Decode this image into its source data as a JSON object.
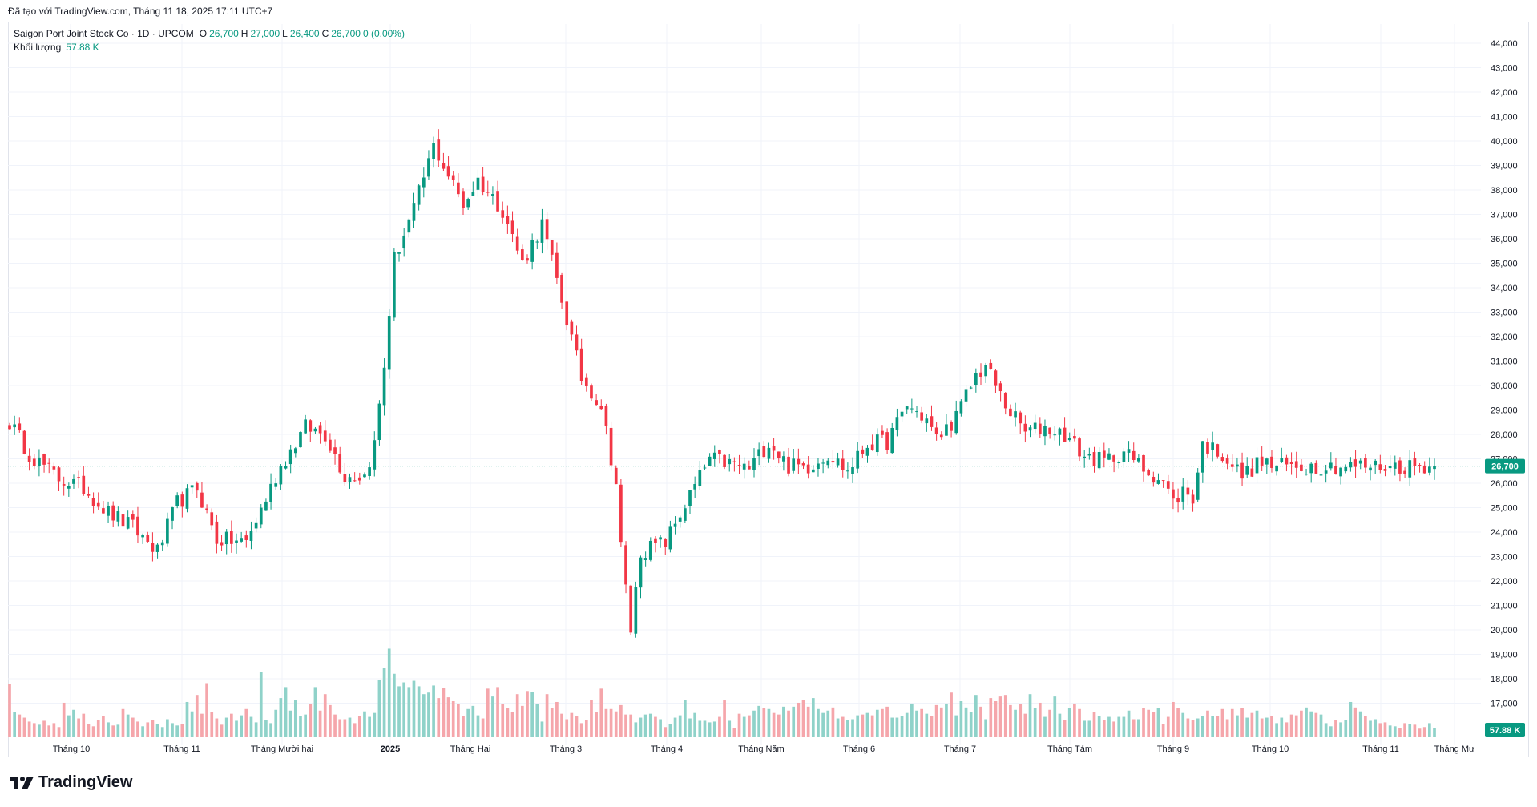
{
  "caption": "Đã tạo với TradingView.com, Tháng 11 18, 2025 17:11 UTC+7",
  "legend": {
    "title": "Saigon Port Joint Stock Co · 1D · UPCOM",
    "open_label": "O",
    "open_value": "26,700",
    "high_label": "H",
    "high_value": "27,000",
    "low_label": "L",
    "low_value": "26,400",
    "close_label": "C",
    "close_value": "26,700",
    "change": "0 (0.00%)",
    "volume_label": "Khối lượng",
    "volume_value": "57.88 K"
  },
  "last_price_label": "26,700",
  "last_volume_label": "57.88 K",
  "brand": "TradingView",
  "colors": {
    "up": "#089981",
    "down": "#f23645",
    "up_vol": "#8fd2c9",
    "down_vol": "#f5a6ab",
    "accent": "#2962ff"
  },
  "chart_data": {
    "type": "candlestick",
    "price_axis": {
      "min": 16000,
      "max": 44500,
      "ticks": [
        "17,000",
        "18,000",
        "19,000",
        "20,000",
        "21,000",
        "22,000",
        "23,000",
        "24,000",
        "25,000",
        "26,000",
        "27,000",
        "28,000",
        "29,000",
        "30,000",
        "31,000",
        "32,000",
        "33,000",
        "34,000",
        "35,000",
        "36,000",
        "37,000",
        "38,000",
        "39,000",
        "40,000",
        "41,000",
        "42,000",
        "43,000",
        "44,000"
      ]
    },
    "time_axis": [
      "Tháng 10",
      "Tháng 11",
      "Tháng Mười hai",
      "2025",
      "Tháng Hai",
      "Tháng 3",
      "Tháng 4",
      "Tháng Năm",
      "Tháng 6",
      "Tháng 7",
      "Tháng Tám",
      "Tháng 9",
      "Tháng 10",
      "Tháng 11",
      "Tháng Mư"
    ],
    "time_axis_bold": "2025",
    "anchors": [
      [
        0,
        28500
      ],
      [
        4,
        27200
      ],
      [
        10,
        26200
      ],
      [
        15,
        25800
      ],
      [
        20,
        24800
      ],
      [
        25,
        24200
      ],
      [
        30,
        23200
      ],
      [
        34,
        25200
      ],
      [
        38,
        25800
      ],
      [
        42,
        23700
      ],
      [
        48,
        23600
      ],
      [
        55,
        26700
      ],
      [
        60,
        28300
      ],
      [
        64,
        28000
      ],
      [
        68,
        26300
      ],
      [
        72,
        26300
      ],
      [
        74,
        27600
      ],
      [
        76,
        30800
      ],
      [
        78,
        35200
      ],
      [
        82,
        37200
      ],
      [
        86,
        39800
      ],
      [
        92,
        37400
      ],
      [
        95,
        38400
      ],
      [
        100,
        37200
      ],
      [
        104,
        35000
      ],
      [
        108,
        36600
      ],
      [
        112,
        33500
      ],
      [
        116,
        30300
      ],
      [
        120,
        29200
      ],
      [
        123,
        26000
      ],
      [
        124,
        23400
      ],
      [
        126,
        20000
      ],
      [
        128,
        23200
      ],
      [
        133,
        23600
      ],
      [
        138,
        25500
      ],
      [
        142,
        27000
      ],
      [
        146,
        26800
      ],
      [
        150,
        26600
      ],
      [
        154,
        27700
      ],
      [
        158,
        26700
      ],
      [
        162,
        26700
      ],
      [
        166,
        27200
      ],
      [
        170,
        26500
      ],
      [
        174,
        27600
      ],
      [
        178,
        27700
      ],
      [
        182,
        29200
      ],
      [
        186,
        28600
      ],
      [
        188,
        27800
      ],
      [
        192,
        28700
      ],
      [
        196,
        30400
      ],
      [
        198,
        30800
      ],
      [
        202,
        29200
      ],
      [
        206,
        28100
      ],
      [
        210,
        28300
      ],
      [
        214,
        28000
      ],
      [
        218,
        27100
      ],
      [
        222,
        26900
      ],
      [
        226,
        27300
      ],
      [
        230,
        26600
      ],
      [
        234,
        26100
      ],
      [
        236,
        25200
      ],
      [
        238,
        25700
      ],
      [
        240,
        25400
      ],
      [
        242,
        27600
      ],
      [
        246,
        27200
      ],
      [
        250,
        26300
      ],
      [
        254,
        26900
      ],
      [
        256,
        26700
      ]
    ],
    "volume_axis": {
      "max": 23000
    },
    "volumes": [
      6800,
      3200,
      2900,
      2500,
      2000,
      1800,
      1600,
      2100,
      1500,
      1800,
      1300,
      4400,
      2800,
      3500,
      2400,
      3000,
      1700,
      1400,
      2200,
      2700,
      1900,
      1500,
      1600,
      3600,
      2900,
      2500,
      2000,
      1400,
      1900,
      2200,
      1700,
      1300,
      2300,
      1800,
      1500,
      1700,
      4500,
      3300,
      5400,
      3000,
      6900,
      3200,
      2400,
      1600,
      2500,
      3000,
      2100,
      2800,
      3600,
      2600,
      1900,
      8300,
      2200,
      1800,
      3500,
      5000,
      6400,
      3400,
      4700,
      2700,
      2900,
      4200,
      6400,
      3400,
      5500,
      4100,
      2900,
      2300,
      2300,
      2500,
      1800,
      2700,
      3300,
      2600,
      3100,
      7300,
      8800,
      11300,
      8100,
      6500,
      7000,
      6400,
      7200,
      6500,
      5500,
      5700,
      6600,
      5000,
      6300,
      5100,
      4600,
      4200,
      2700,
      3600,
      4000,
      2800,
      2400,
      6200,
      5200,
      6400,
      4200,
      3700,
      3200,
      5500,
      4000,
      5900,
      5800,
      4200,
      2000,
      5500,
      3700,
      4500,
      3000,
      2300,
      3100,
      2700,
      1800,
      2200,
      4800,
      3200,
      6200,
      3600,
      3600,
      3300,
      4100,
      2900,
      2900,
      1900,
      2500,
      2900,
      3000,
      2600,
      2300,
      1300,
      1700,
      2500,
      2800,
      4800,
      2400,
      3100,
      2100,
      2100,
      1900,
      2000,
      2600,
      4700,
      2100,
      1200,
      3000,
      2600,
      2800,
      3400,
      4000,
      3700,
      3600,
      3100,
      2900,
      3900,
      3400,
      3900,
      4400,
      4800,
      3900,
      5000,
      3600,
      3100,
      3400,
      3800,
      2400,
      2600,
      2200,
      2300,
      2800,
      2900,
      3100,
      2800,
      3500,
      3600,
      3900,
      2500,
      2500,
      2700,
      3100,
      4300,
      3400,
      3600,
      3000,
      2700,
      4100,
      3800,
      4300,
      5700,
      2800,
      4600,
      3800,
      3200,
      5400,
      3900,
      2300,
      5000,
      4600,
      5200,
      5400,
      4100,
      3500,
      4200,
      3000,
      5500,
      3700,
      4400,
      2600,
      3500,
      5200,
      3000,
      2200,
      3700,
      4300,
      3600,
      2100,
      2100,
      3200,
      2700,
      2200,
      2600,
      2000,
      2600,
      2600,
      3400,
      2300,
      2300,
      3700,
      3500,
      3200,
      3700,
      1700,
      2600,
      4500,
      3700,
      3100,
      2400,
      2200,
      2400,
      2700,
      3400,
      2700,
      2700,
      3600,
      2300,
      3600,
      2800,
      3700,
      2500,
      3100,
      3400,
      2400,
      2500,
      2700,
      1800,
      2500,
      1900,
      2900,
      2800,
      3400,
      3800,
      3300,
      3100,
      2900,
      1800,
      1400,
      2200,
      1900,
      2200,
      4500,
      3800,
      3300,
      2700,
      2100,
      2300,
      1800,
      1900,
      1500,
      1400,
      1200,
      1800,
      1700,
      1600,
      1100,
      1300,
      1800,
      1200
    ],
    "last_close": 26700,
    "last_volume": 57880
  }
}
